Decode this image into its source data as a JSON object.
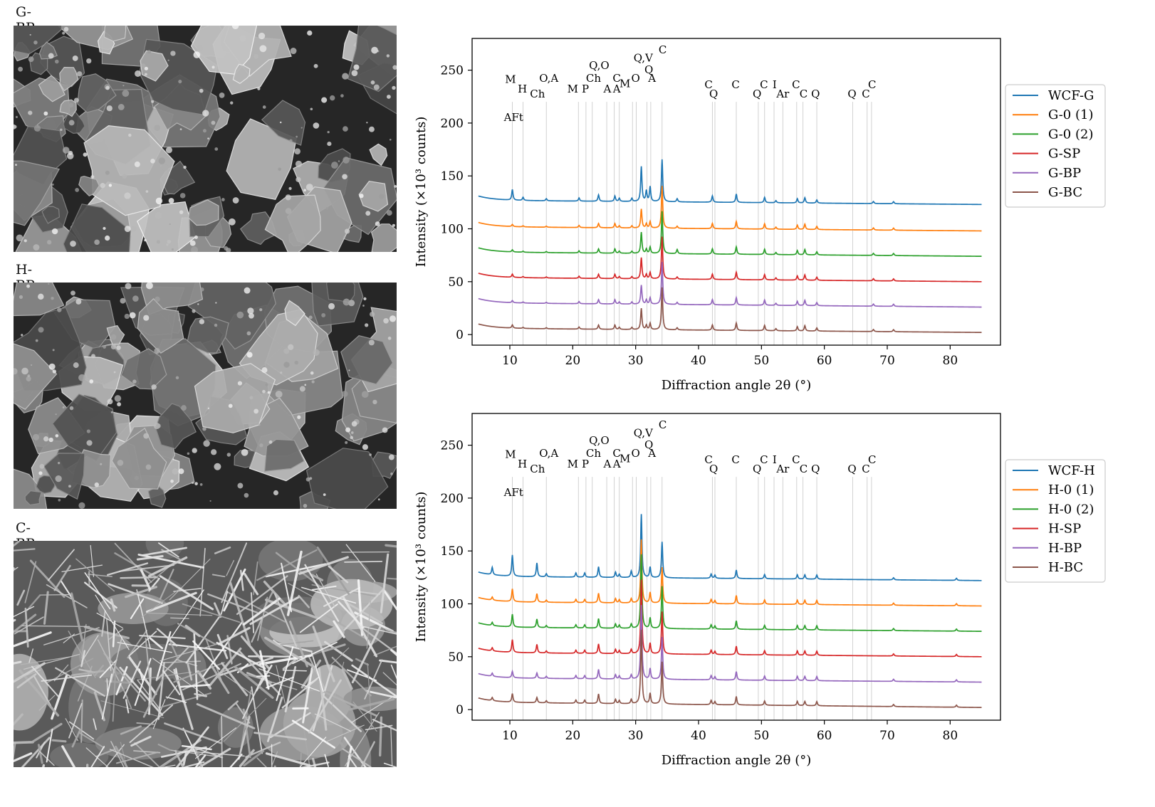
{
  "micrographs": [
    {
      "label": "G-BP",
      "texture": "blocky-particles"
    },
    {
      "label": "H-BP",
      "texture": "blocky-particles"
    },
    {
      "label": "C-BP",
      "texture": "needle-crystals"
    }
  ],
  "colors": {
    "series": [
      "#1f77b4",
      "#ff7f0e",
      "#2ca02c",
      "#d62728",
      "#9467bd",
      "#8c564b"
    ],
    "gridline": "#cccccc"
  },
  "chart_data": [
    {
      "type": "line",
      "xlabel": "Diffraction angle 2θ (°)",
      "ylabel": "Intensity (×10³ counts)",
      "xlim": [
        4,
        88
      ],
      "ylim": [
        -10,
        280
      ],
      "xticks": [
        10,
        20,
        30,
        40,
        50,
        60,
        70,
        80
      ],
      "yticks": [
        0,
        50,
        100,
        150,
        200,
        250
      ],
      "legend_position": "right",
      "series": [
        {
          "name": "WCF-G",
          "baseline_start": 127,
          "baseline_end": 123
        },
        {
          "name": "G-0 (1)",
          "baseline_start": 102,
          "baseline_end": 98
        },
        {
          "name": "G-0 (2)",
          "baseline_start": 78,
          "baseline_end": 74
        },
        {
          "name": "G-SP",
          "baseline_start": 54,
          "baseline_end": 50
        },
        {
          "name": "G-BP",
          "baseline_start": 30,
          "baseline_end": 26
        },
        {
          "name": "G-BC",
          "baseline_start": 6,
          "baseline_end": 2
        }
      ],
      "peaks": [
        {
          "x": 10.4,
          "heights": [
            10,
            2,
            2,
            3,
            2,
            3
          ]
        },
        {
          "x": 12.1,
          "heights": [
            3,
            1,
            1,
            1,
            1,
            1
          ]
        },
        {
          "x": 15.8,
          "heights": [
            2,
            1,
            1,
            1,
            1,
            1
          ]
        },
        {
          "x": 21.0,
          "heights": [
            3,
            2,
            2,
            2,
            2,
            2
          ]
        },
        {
          "x": 24.1,
          "heights": [
            6,
            4,
            4,
            4,
            4,
            4
          ]
        },
        {
          "x": 26.7,
          "heights": [
            5,
            4,
            4,
            4,
            4,
            4
          ]
        },
        {
          "x": 27.4,
          "heights": [
            3,
            2,
            2,
            2,
            2,
            2
          ]
        },
        {
          "x": 29.4,
          "heights": [
            3,
            2,
            2,
            2,
            2,
            2
          ]
        },
        {
          "x": 30.9,
          "heights": [
            33,
            18,
            20,
            20,
            18,
            20
          ]
        },
        {
          "x": 31.7,
          "heights": [
            10,
            4,
            4,
            4,
            4,
            4
          ]
        },
        {
          "x": 32.3,
          "heights": [
            14,
            6,
            6,
            6,
            6,
            6
          ]
        },
        {
          "x": 34.2,
          "heights": [
            40,
            40,
            40,
            40,
            40,
            40
          ]
        },
        {
          "x": 36.6,
          "heights": [
            3,
            2,
            4,
            2,
            2,
            2
          ]
        },
        {
          "x": 42.2,
          "heights": [
            6,
            5,
            5,
            5,
            5,
            5
          ]
        },
        {
          "x": 46.0,
          "heights": [
            8,
            7,
            7,
            7,
            7,
            7
          ]
        },
        {
          "x": 50.5,
          "heights": [
            5,
            5,
            5,
            5,
            5,
            5
          ]
        },
        {
          "x": 52.3,
          "heights": [
            2,
            2,
            2,
            2,
            2,
            2
          ]
        },
        {
          "x": 55.7,
          "heights": [
            4,
            4,
            4,
            4,
            4,
            4
          ]
        },
        {
          "x": 56.9,
          "heights": [
            5,
            5,
            5,
            5,
            5,
            5
          ]
        },
        {
          "x": 58.8,
          "heights": [
            3,
            3,
            3,
            3,
            3,
            3
          ]
        },
        {
          "x": 67.8,
          "heights": [
            2,
            2,
            2,
            2,
            2,
            2
          ]
        },
        {
          "x": 71.0,
          "heights": [
            2,
            2,
            2,
            2,
            2,
            2
          ]
        }
      ],
      "reference_lines": [
        10.4,
        12.1,
        15.8,
        20.9,
        22.1,
        23.1,
        25.4,
        26.6,
        27.4,
        29.5,
        30.1,
        31.8,
        32.4,
        34.2,
        42.2,
        42.6,
        46.0,
        49.5,
        50.5,
        52.0,
        53.4,
        55.6,
        56.6,
        58.8,
        64.5,
        66.8,
        67.5
      ],
      "phase_labels": [
        {
          "text": "M",
          "x": 10.1,
          "y": 238
        },
        {
          "text": "H",
          "x": 12.0,
          "y": 229
        },
        {
          "text": "Ch",
          "x": 14.4,
          "y": 224
        },
        {
          "text": "O,A",
          "x": 16.2,
          "y": 239
        },
        {
          "text": "AFt",
          "x": 10.6,
          "y": 202
        },
        {
          "text": "M",
          "x": 20.0,
          "y": 229
        },
        {
          "text": "P",
          "x": 22.0,
          "y": 229
        },
        {
          "text": "Ch",
          "x": 23.3,
          "y": 239
        },
        {
          "text": "Q,O",
          "x": 24.2,
          "y": 251
        },
        {
          "text": "A",
          "x": 25.5,
          "y": 229
        },
        {
          "text": "C",
          "x": 27.0,
          "y": 239
        },
        {
          "text": "A",
          "x": 27.0,
          "y": 229
        },
        {
          "text": "M",
          "x": 28.3,
          "y": 234
        },
        {
          "text": "O",
          "x": 30.0,
          "y": 239
        },
        {
          "text": "Q,V",
          "x": 31.2,
          "y": 258
        },
        {
          "text": "Q",
          "x": 32.1,
          "y": 247
        },
        {
          "text": "A",
          "x": 32.6,
          "y": 239
        },
        {
          "text": "C",
          "x": 34.3,
          "y": 266
        },
        {
          "text": "C",
          "x": 41.6,
          "y": 233
        },
        {
          "text": "Q",
          "x": 42.4,
          "y": 224
        },
        {
          "text": "C",
          "x": 45.9,
          "y": 233
        },
        {
          "text": "Q",
          "x": 49.3,
          "y": 224
        },
        {
          "text": "C",
          "x": 50.4,
          "y": 233
        },
        {
          "text": "I",
          "x": 52.1,
          "y": 233
        },
        {
          "text": "Ar",
          "x": 53.4,
          "y": 224
        },
        {
          "text": "C",
          "x": 55.5,
          "y": 233
        },
        {
          "text": "C",
          "x": 56.7,
          "y": 224
        },
        {
          "text": "Q",
          "x": 58.6,
          "y": 224
        },
        {
          "text": "Q",
          "x": 64.4,
          "y": 224
        },
        {
          "text": "C",
          "x": 66.6,
          "y": 224
        },
        {
          "text": "C",
          "x": 67.6,
          "y": 233
        }
      ]
    },
    {
      "type": "line",
      "xlabel": "Diffraction angle 2θ (°)",
      "ylabel": "Intensity (×10³ counts)",
      "xlim": [
        4,
        88
      ],
      "ylim": [
        -10,
        280
      ],
      "xticks": [
        10,
        20,
        30,
        40,
        50,
        60,
        70,
        80
      ],
      "yticks": [
        0,
        50,
        100,
        150,
        200,
        250
      ],
      "legend_position": "right",
      "series": [
        {
          "name": "WCF-H",
          "baseline_start": 126,
          "baseline_end": 122
        },
        {
          "name": "H-0 (1)",
          "baseline_start": 102,
          "baseline_end": 98
        },
        {
          "name": "H-0 (2)",
          "baseline_start": 78,
          "baseline_end": 74
        },
        {
          "name": "H-SP",
          "baseline_start": 54,
          "baseline_end": 50
        },
        {
          "name": "H-BP",
          "baseline_start": 30,
          "baseline_end": 26
        },
        {
          "name": "H-BC",
          "baseline_start": 7,
          "baseline_end": 2
        }
      ],
      "peaks": [
        {
          "x": 7.2,
          "heights": [
            7,
            3,
            3,
            3,
            3,
            3
          ]
        },
        {
          "x": 10.4,
          "heights": [
            20,
            12,
            12,
            12,
            6,
            8
          ]
        },
        {
          "x": 14.3,
          "heights": [
            13,
            8,
            8,
            8,
            5,
            5
          ]
        },
        {
          "x": 15.8,
          "heights": [
            3,
            2,
            2,
            2,
            2,
            2
          ]
        },
        {
          "x": 20.5,
          "heights": [
            4,
            3,
            3,
            3,
            3,
            3
          ]
        },
        {
          "x": 21.9,
          "heights": [
            4,
            3,
            3,
            3,
            3,
            3
          ]
        },
        {
          "x": 24.1,
          "heights": [
            10,
            9,
            9,
            9,
            9,
            9
          ]
        },
        {
          "x": 26.8,
          "heights": [
            5,
            4,
            4,
            4,
            4,
            4
          ]
        },
        {
          "x": 27.4,
          "heights": [
            3,
            3,
            3,
            3,
            3,
            3
          ]
        },
        {
          "x": 29.3,
          "heights": [
            6,
            4,
            4,
            4,
            4,
            4
          ]
        },
        {
          "x": 30.9,
          "heights": [
            60,
            60,
            70,
            70,
            70,
            70
          ]
        },
        {
          "x": 32.3,
          "heights": [
            10,
            10,
            10,
            10,
            10,
            10
          ]
        },
        {
          "x": 34.2,
          "heights": [
            34,
            34,
            40,
            40,
            40,
            40
          ]
        },
        {
          "x": 42.0,
          "heights": [
            4,
            4,
            4,
            4,
            4,
            4
          ]
        },
        {
          "x": 42.6,
          "heights": [
            3,
            3,
            3,
            3,
            3,
            3
          ]
        },
        {
          "x": 46.0,
          "heights": [
            8,
            8,
            8,
            8,
            8,
            8
          ]
        },
        {
          "x": 50.5,
          "heights": [
            4,
            4,
            4,
            4,
            4,
            4
          ]
        },
        {
          "x": 55.7,
          "heights": [
            4,
            4,
            4,
            4,
            4,
            4
          ]
        },
        {
          "x": 56.9,
          "heights": [
            4,
            4,
            4,
            4,
            4,
            4
          ]
        },
        {
          "x": 58.8,
          "heights": [
            4,
            4,
            4,
            4,
            4,
            4
          ]
        },
        {
          "x": 71.0,
          "heights": [
            2,
            2,
            2,
            2,
            2,
            2
          ]
        },
        {
          "x": 81.0,
          "heights": [
            2,
            2,
            2,
            2,
            2,
            2
          ]
        }
      ],
      "reference_lines": [
        10.4,
        12.1,
        15.8,
        20.9,
        22.1,
        23.1,
        25.4,
        26.6,
        27.4,
        29.5,
        30.1,
        31.8,
        32.4,
        34.2,
        42.2,
        42.6,
        46.0,
        49.5,
        50.5,
        52.0,
        53.4,
        55.6,
        56.6,
        58.8,
        64.5,
        66.8,
        67.5
      ],
      "phase_labels": [
        {
          "text": "M",
          "x": 10.1,
          "y": 238
        },
        {
          "text": "H",
          "x": 12.0,
          "y": 229
        },
        {
          "text": "Ch",
          "x": 14.4,
          "y": 224
        },
        {
          "text": "O,A",
          "x": 16.2,
          "y": 239
        },
        {
          "text": "AFt",
          "x": 10.6,
          "y": 202
        },
        {
          "text": "M",
          "x": 20.0,
          "y": 229
        },
        {
          "text": "P",
          "x": 22.0,
          "y": 229
        },
        {
          "text": "Ch",
          "x": 23.3,
          "y": 239
        },
        {
          "text": "Q,O",
          "x": 24.2,
          "y": 251
        },
        {
          "text": "A",
          "x": 25.5,
          "y": 229
        },
        {
          "text": "C",
          "x": 27.0,
          "y": 239
        },
        {
          "text": "A",
          "x": 27.0,
          "y": 229
        },
        {
          "text": "M",
          "x": 28.3,
          "y": 234
        },
        {
          "text": "O",
          "x": 30.0,
          "y": 239
        },
        {
          "text": "Q,V",
          "x": 31.2,
          "y": 258
        },
        {
          "text": "Q",
          "x": 32.1,
          "y": 247
        },
        {
          "text": "A",
          "x": 32.6,
          "y": 239
        },
        {
          "text": "C",
          "x": 34.3,
          "y": 266
        },
        {
          "text": "C",
          "x": 41.6,
          "y": 233
        },
        {
          "text": "Q",
          "x": 42.4,
          "y": 224
        },
        {
          "text": "C",
          "x": 45.9,
          "y": 233
        },
        {
          "text": "Q",
          "x": 49.3,
          "y": 224
        },
        {
          "text": "C",
          "x": 50.4,
          "y": 233
        },
        {
          "text": "I",
          "x": 52.1,
          "y": 233
        },
        {
          "text": "Ar",
          "x": 53.4,
          "y": 224
        },
        {
          "text": "C",
          "x": 55.5,
          "y": 233
        },
        {
          "text": "C",
          "x": 56.7,
          "y": 224
        },
        {
          "text": "Q",
          "x": 58.6,
          "y": 224
        },
        {
          "text": "Q",
          "x": 64.4,
          "y": 224
        },
        {
          "text": "C",
          "x": 66.6,
          "y": 224
        },
        {
          "text": "C",
          "x": 67.6,
          "y": 233
        }
      ]
    }
  ]
}
